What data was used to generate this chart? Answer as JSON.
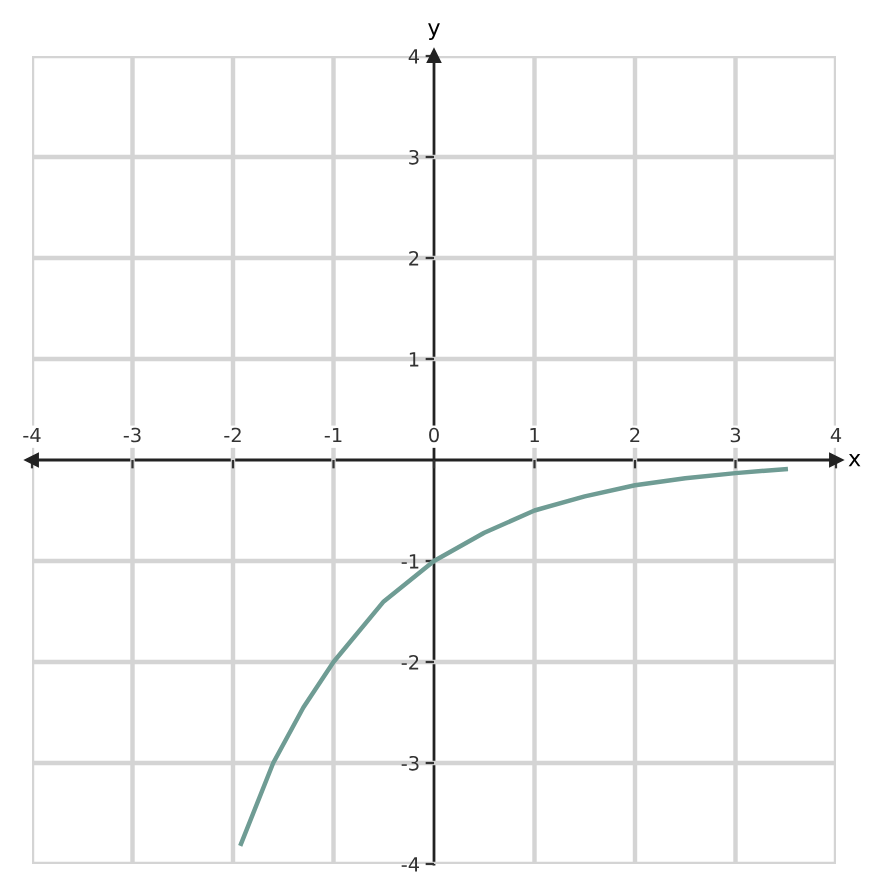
{
  "chart_data": {
    "type": "line",
    "xlabel": "x",
    "ylabel": "y",
    "x": [
      -1.92,
      -1.6,
      -1.3,
      -1,
      -0.5,
      0,
      0.5,
      1,
      1.5,
      2,
      2.5,
      3,
      3.5
    ],
    "values": [
      -3.8,
      -3.0,
      -2.45,
      -2.0,
      -1.4,
      -1.0,
      -0.72,
      -0.5,
      -0.36,
      -0.25,
      -0.18,
      -0.13,
      -0.09
    ],
    "color": "#6f9c94",
    "line_style": "solid",
    "xlim": [
      -4,
      4
    ],
    "ylim": [
      -4,
      4
    ],
    "xticks": [
      -4,
      -3,
      -2,
      -1,
      0,
      1,
      2,
      3,
      4
    ],
    "yticks": [
      -4,
      -3,
      -2,
      -1,
      1,
      2,
      3,
      4
    ],
    "grid": true
  }
}
